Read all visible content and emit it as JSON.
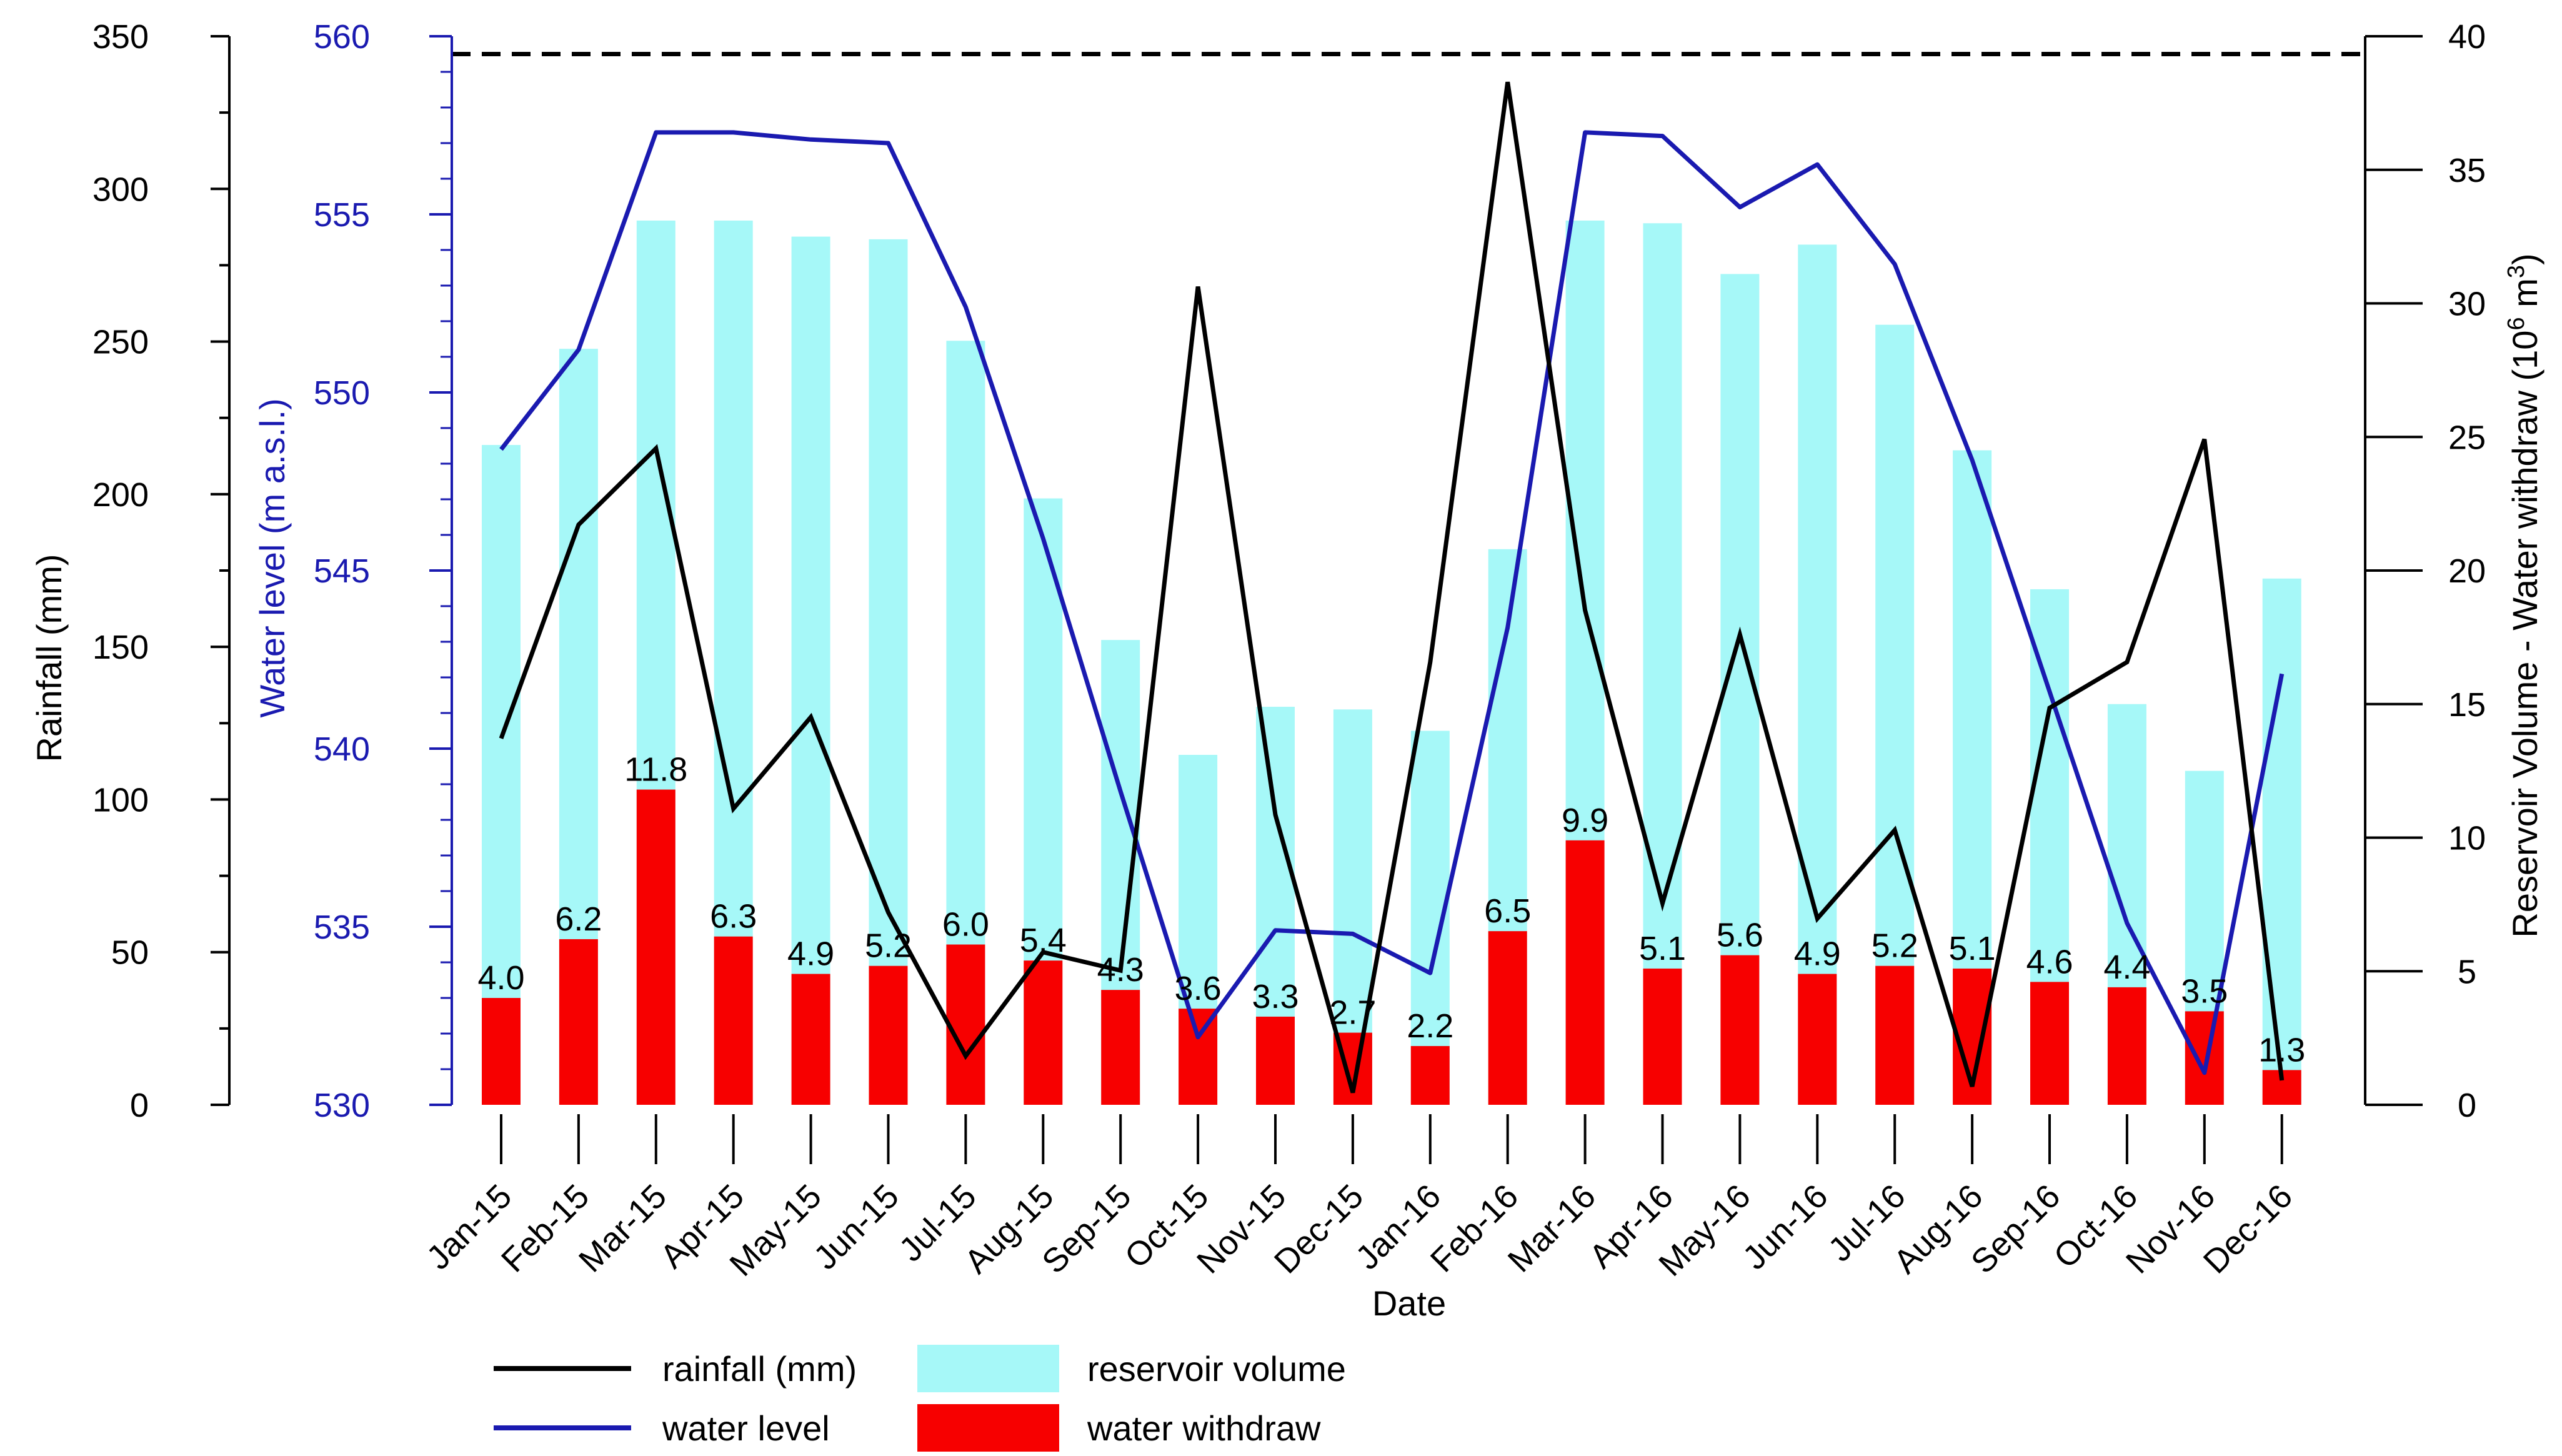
{
  "chart_data": {
    "type": "bar",
    "xlabel": "Date",
    "categories": [
      "Jan-15",
      "Feb-15",
      "Mar-15",
      "Apr-15",
      "May-15",
      "Jun-15",
      "Jul-15",
      "Aug-15",
      "Sep-15",
      "Oct-15",
      "Nov-15",
      "Dec-15",
      "Jan-16",
      "Feb-16",
      "Mar-16",
      "Apr-16",
      "May-16",
      "Jun-16",
      "Jul-16",
      "Aug-16",
      "Sep-16",
      "Oct-16",
      "Nov-16",
      "Dec-16"
    ],
    "axes": {
      "rainfall": {
        "label": "Rainfall (mm)",
        "range": [
          0,
          350
        ],
        "ticks": [
          "0",
          "50",
          "100",
          "150",
          "200",
          "250",
          "300",
          "350"
        ]
      },
      "water_level": {
        "label": "Water level (m a.s.l.)",
        "range": [
          530,
          560
        ],
        "ticks": [
          "530",
          "535",
          "540",
          "545",
          "550",
          "555",
          "560"
        ]
      },
      "volume": {
        "label_main": "Reservoir Volume - Water withdraw (10",
        "label_sup": "6",
        "label_mid": " m",
        "label_sup2": "3",
        "label_end": ")",
        "range": [
          0,
          40
        ],
        "ticks": [
          "0",
          "5",
          "10",
          "15",
          "20",
          "25",
          "30",
          "35",
          "40"
        ]
      }
    },
    "reference_line": {
      "axis": "water_level",
      "value": 559.5,
      "style": "dashed"
    },
    "series": [
      {
        "name": "rainfall (mm)",
        "type": "line",
        "axis": "rainfall",
        "color": "#000000",
        "values": [
          120,
          190,
          215,
          97,
          127,
          63,
          16,
          50,
          44,
          268,
          95,
          4,
          145,
          335,
          162,
          66,
          154,
          61,
          90,
          6,
          130,
          145,
          218,
          8
        ]
      },
      {
        "name": "water level",
        "type": "line",
        "axis": "water_level",
        "color": "#1a1ab0",
        "values": [
          548.4,
          551.2,
          557.3,
          557.3,
          557.1,
          557.0,
          552.4,
          545.9,
          538.8,
          531.9,
          534.9,
          534.8,
          533.7,
          543.4,
          557.3,
          557.2,
          555.2,
          556.4,
          553.6,
          548.1,
          541.6,
          535.1,
          530.9,
          542.1
        ]
      },
      {
        "name": "reservoir volume",
        "type": "bar",
        "axis": "volume",
        "color": "#a6f8f8",
        "values": [
          24.7,
          28.3,
          33.1,
          33.1,
          32.5,
          32.4,
          28.6,
          22.7,
          17.4,
          13.1,
          14.9,
          14.8,
          14.0,
          20.8,
          33.1,
          33.0,
          31.1,
          32.2,
          29.2,
          24.5,
          19.3,
          15.0,
          12.5,
          19.7
        ]
      },
      {
        "name": "water withdraw",
        "type": "bar",
        "axis": "volume",
        "color": "#f70000",
        "values": [
          4.0,
          6.2,
          11.8,
          6.3,
          4.9,
          5.2,
          6.0,
          5.4,
          4.3,
          3.6,
          3.3,
          2.7,
          2.2,
          6.5,
          9.9,
          5.1,
          5.6,
          4.9,
          5.2,
          5.1,
          4.6,
          4.4,
          3.5,
          1.3
        ],
        "labels": [
          "4.0",
          "6.2",
          "11.8",
          "6.3",
          "4.9",
          "5.2",
          "6.0",
          "5.4",
          "4.3",
          "3.6",
          "3.3",
          "2.7",
          "2.2",
          "6.5",
          "9.9",
          "5.1",
          "5.6",
          "4.9",
          "5.2",
          "5.1",
          "4.6",
          "4.4",
          "3.5",
          "1.3"
        ]
      }
    ],
    "legend": {
      "position": "bottom",
      "entries": [
        {
          "label": "rainfall (mm)",
          "kind": "line",
          "color": "#000000"
        },
        {
          "label": "water level",
          "kind": "line",
          "color": "#1a1ab0"
        },
        {
          "label": "reservoir volume",
          "kind": "patch",
          "color": "#a6f8f8"
        },
        {
          "label": "water withdraw",
          "kind": "patch",
          "color": "#f70000"
        }
      ]
    }
  }
}
